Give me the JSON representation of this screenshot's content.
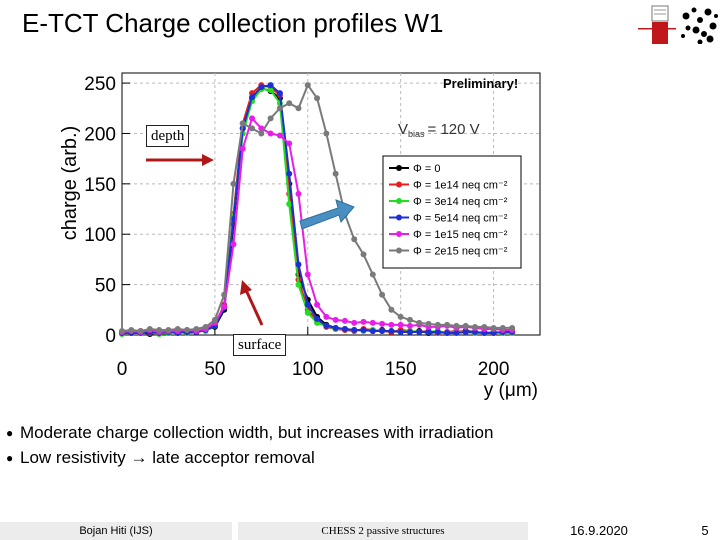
{
  "slide": {
    "title": "E-TCT Charge collection profiles W1",
    "bullets": [
      "Moderate charge collection width, but increases with irradiation",
      "Low resistivity → late acceptor removal"
    ],
    "bullet_glyph": "●"
  },
  "footer": {
    "author": "Bojan Hiti (IJS)",
    "center": "CHESS 2 passive structures",
    "date": "16.9.2020",
    "page": "5"
  },
  "annotations": {
    "preliminary": "Preliminary!",
    "depth": "depth",
    "surface": "surface",
    "bias_label": "V",
    "bias_sub": "bias",
    "bias_value": "= 120 V",
    "arrow_color": "#b01818",
    "blue_arrow_color": "#4a8fc2"
  },
  "chart_data": {
    "type": "line",
    "title": "",
    "xlabel": "y (μm)",
    "ylabel": "charge (arb.)",
    "xlim": [
      0,
      225
    ],
    "ylim": [
      0,
      260
    ],
    "xticks": [
      0,
      50,
      100,
      150,
      200
    ],
    "yticks": [
      0,
      50,
      100,
      150,
      200,
      250
    ],
    "grid": true,
    "legend_position": "right",
    "x": [
      0,
      5,
      10,
      15,
      20,
      25,
      30,
      35,
      40,
      45,
      50,
      55,
      60,
      65,
      70,
      75,
      80,
      85,
      90,
      95,
      100,
      105,
      110,
      115,
      120,
      125,
      130,
      135,
      140,
      145,
      150,
      155,
      160,
      165,
      170,
      175,
      180,
      185,
      190,
      195,
      200,
      205,
      210
    ],
    "series": [
      {
        "name": "Φ = 0",
        "color": "#000000",
        "values": [
          2,
          2,
          3,
          1,
          3,
          2,
          4,
          2,
          3,
          5,
          8,
          25,
          110,
          205,
          235,
          245,
          242,
          235,
          150,
          60,
          35,
          18,
          10,
          7,
          6,
          5,
          5,
          4,
          5,
          3,
          4,
          3,
          4,
          2,
          3,
          2,
          3,
          4,
          3,
          2,
          3,
          2,
          3
        ]
      },
      {
        "name": "Φ = 1e14 neq cm⁻²",
        "color": "#e81e1e",
        "values": [
          3,
          2,
          4,
          2,
          3,
          3,
          2,
          4,
          3,
          6,
          10,
          30,
          120,
          210,
          240,
          248,
          246,
          238,
          140,
          55,
          25,
          14,
          8,
          6,
          5,
          4,
          6,
          5,
          4,
          3,
          5,
          4,
          3,
          4,
          2,
          3,
          4,
          3,
          2,
          3,
          2,
          3,
          2
        ]
      },
      {
        "name": "Φ = 3e14 neq cm⁻²",
        "color": "#22dd22",
        "values": [
          1,
          3,
          2,
          3,
          1,
          2,
          3,
          2,
          4,
          4,
          9,
          28,
          118,
          200,
          232,
          244,
          243,
          230,
          130,
          50,
          22,
          12,
          9,
          6,
          6,
          5,
          4,
          5,
          4,
          4,
          3,
          4,
          3,
          3,
          4,
          2,
          3,
          3,
          2,
          2,
          3,
          2,
          2
        ]
      },
      {
        "name": "Φ = 5e14 neq cm⁻²",
        "color": "#1f2fd6",
        "values": [
          2,
          2,
          2,
          3,
          2,
          3,
          2,
          3,
          3,
          5,
          9,
          27,
          115,
          205,
          236,
          246,
          248,
          240,
          160,
          70,
          30,
          16,
          9,
          7,
          6,
          5,
          5,
          4,
          4,
          4,
          3,
          3,
          3,
          3,
          3,
          2,
          2,
          3,
          3,
          2,
          2,
          3,
          3
        ]
      },
      {
        "name": "Φ = 1e15 neq cm⁻²",
        "color": "#e81ee8",
        "values": [
          3,
          4,
          3,
          5,
          3,
          4,
          4,
          5,
          4,
          6,
          12,
          28,
          90,
          185,
          215,
          205,
          200,
          198,
          190,
          140,
          60,
          30,
          18,
          15,
          14,
          12,
          13,
          12,
          11,
          10,
          10,
          9,
          10,
          8,
          8,
          9,
          7,
          8,
          7,
          6,
          6,
          5,
          5
        ]
      },
      {
        "name": "Φ = 2e15 neq cm⁻²",
        "color": "#7a7a7a",
        "values": [
          4,
          5,
          4,
          6,
          5,
          5,
          6,
          5,
          6,
          8,
          15,
          40,
          150,
          210,
          205,
          200,
          215,
          225,
          230,
          225,
          248,
          235,
          200,
          160,
          120,
          95,
          80,
          60,
          40,
          25,
          18,
          15,
          12,
          11,
          10,
          10,
          9,
          9,
          8,
          8,
          7,
          7,
          7
        ]
      }
    ]
  }
}
